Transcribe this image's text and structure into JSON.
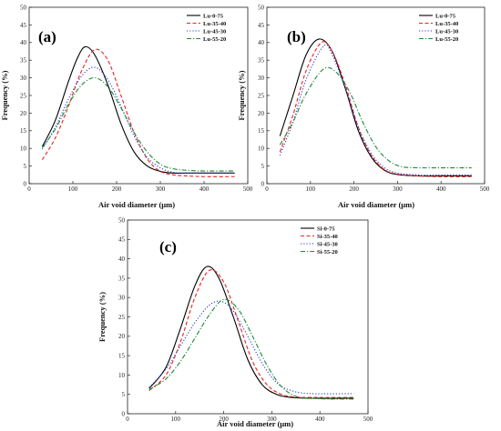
{
  "chart_data": [
    {
      "type": "line",
      "panel_label": "(a)",
      "xlabel": "Air void diameter (μm)",
      "ylabel": "Frequency (%)",
      "xlim": [
        0,
        500
      ],
      "ylim": [
        0,
        50
      ],
      "xticks": [
        "0",
        "100",
        "200",
        "300",
        "400",
        "500"
      ],
      "yticks": [
        "0",
        "5",
        "10",
        "15",
        "20",
        "25",
        "30",
        "35",
        "40",
        "45",
        "50"
      ],
      "legend_position": "top-right",
      "series": [
        {
          "name": "Lu-0-75",
          "color": "#000000",
          "dash": "solid",
          "x": [
            30,
            60,
            90,
            110,
            128,
            150,
            180,
            210,
            240,
            270,
            300,
            330,
            360,
            400,
            470
          ],
          "y": [
            10.5,
            18,
            29,
            35.5,
            38.8,
            36.5,
            28,
            17,
            9,
            5,
            3.5,
            3.0,
            3.0,
            3.0,
            3.0
          ]
        },
        {
          "name": "Lu-35-40",
          "color": "#e8231e",
          "dash": "dashed",
          "x": [
            30,
            60,
            90,
            120,
            150,
            180,
            210,
            240,
            270,
            300,
            330,
            360,
            400,
            470
          ],
          "y": [
            6.8,
            13,
            22,
            32,
            38,
            35,
            25,
            14.5,
            7,
            3.5,
            2.5,
            2.2,
            2.0,
            2.0
          ]
        },
        {
          "name": "Lu-45-30",
          "color": "#2f3bd0",
          "dash": "dotted",
          "x": [
            30,
            60,
            90,
            120,
            150,
            180,
            210,
            240,
            270,
            300,
            330,
            360,
            400,
            470
          ],
          "y": [
            9.8,
            16,
            24,
            30.5,
            33,
            29.5,
            22,
            13.5,
            7.5,
            4.5,
            3.2,
            3.0,
            3.0,
            3.0
          ]
        },
        {
          "name": "Lu-55-20",
          "color": "#1b8a3a",
          "dash": "dashdot",
          "x": [
            30,
            60,
            90,
            120,
            150,
            180,
            210,
            240,
            270,
            300,
            330,
            360,
            400,
            470
          ],
          "y": [
            10.2,
            15.5,
            22.5,
            28,
            30,
            27.5,
            21.5,
            14.5,
            9,
            5.5,
            4.2,
            3.8,
            3.6,
            3.6
          ]
        }
      ]
    },
    {
      "type": "line",
      "panel_label": "(b)",
      "xlabel": "Air void diameter (μm)",
      "ylabel": "Frequency (%)",
      "xlim": [
        0,
        500
      ],
      "ylim": [
        0,
        50
      ],
      "xticks": [
        "0",
        "100",
        "200",
        "300",
        "400",
        "500"
      ],
      "yticks": [
        "0",
        "5",
        "10",
        "15",
        "20",
        "25",
        "30",
        "35",
        "40",
        "45",
        "50"
      ],
      "legend_position": "top-right",
      "series": [
        {
          "name": "Lu-0-75",
          "color": "#000000",
          "dash": "solid",
          "x": [
            30,
            60,
            90,
            120,
            150,
            180,
            210,
            240,
            270,
            300,
            350,
            400,
            470
          ],
          "y": [
            13.5,
            25,
            36.5,
            41,
            37.5,
            27,
            15,
            7.5,
            3.8,
            2.6,
            2.2,
            2.2,
            2.2
          ]
        },
        {
          "name": "Lu-35-40",
          "color": "#e8231e",
          "dash": "dashed",
          "x": [
            30,
            60,
            90,
            125,
            150,
            180,
            210,
            240,
            270,
            300,
            350,
            400,
            470
          ],
          "y": [
            9,
            19.5,
            32,
            40,
            37.5,
            28,
            16,
            8,
            4,
            2.7,
            2.2,
            2.0,
            2.0
          ]
        },
        {
          "name": "Lu-45-30",
          "color": "#2f3bd0",
          "dash": "dotted",
          "x": [
            30,
            60,
            90,
            130,
            150,
            180,
            210,
            240,
            270,
            300,
            350,
            400,
            470
          ],
          "y": [
            8,
            17.5,
            29.5,
            39,
            36.5,
            27,
            16,
            8.5,
            4.5,
            3.0,
            2.5,
            2.5,
            2.5
          ]
        },
        {
          "name": "Lu-55-20",
          "color": "#1b8a3a",
          "dash": "dashdot",
          "x": [
            30,
            60,
            90,
            130,
            160,
            190,
            220,
            250,
            280,
            310,
            350,
            400,
            470
          ],
          "y": [
            11,
            17.5,
            25.5,
            32.5,
            31.5,
            26,
            17.5,
            10.5,
            6.5,
            4.8,
            4.5,
            4.5,
            4.5
          ]
        }
      ]
    },
    {
      "type": "line",
      "panel_label": "(c)",
      "xlabel": "Air void diameter (μm)",
      "ylabel": "Frequency (%)",
      "xlim": [
        0,
        500
      ],
      "ylim": [
        0,
        50
      ],
      "xticks": [
        "0",
        "100",
        "200",
        "300",
        "400",
        "500"
      ],
      "yticks": [
        "0",
        "5",
        "10",
        "15",
        "20",
        "25",
        "30",
        "35",
        "40",
        "45",
        "50"
      ],
      "legend_position": "top-right",
      "series": [
        {
          "name": "Si-0-75",
          "color": "#000000",
          "dash": "solid",
          "x": [
            45,
            80,
            110,
            140,
            165,
            190,
            220,
            250,
            280,
            310,
            340,
            380,
            470
          ],
          "y": [
            6.5,
            12,
            22,
            33,
            38,
            35,
            25,
            14,
            7.5,
            5,
            4.2,
            4.0,
            4.0
          ]
        },
        {
          "name": "Si-35-40",
          "color": "#e8231e",
          "dash": "dashed",
          "x": [
            45,
            80,
            110,
            140,
            170,
            200,
            230,
            260,
            290,
            320,
            350,
            390,
            470
          ],
          "y": [
            6.0,
            10,
            18.5,
            30,
            37,
            34,
            24,
            13.5,
            7.5,
            5,
            4.3,
            4.2,
            4.2
          ]
        },
        {
          "name": "Si-45-30",
          "color": "#2f3bd0",
          "dash": "dotted",
          "x": [
            45,
            80,
            110,
            140,
            170,
            195,
            220,
            250,
            280,
            310,
            340,
            380,
            470
          ],
          "y": [
            6.8,
            11.5,
            17.5,
            23.5,
            28,
            29,
            26.5,
            20,
            13,
            8,
            6,
            5.2,
            5.2
          ]
        },
        {
          "name": "Si-55-20",
          "color": "#1b8a3a",
          "dash": "dashdot",
          "x": [
            45,
            80,
            110,
            140,
            170,
            200,
            230,
            260,
            290,
            320,
            350,
            380,
            420,
            470
          ],
          "y": [
            6.2,
            9,
            13.5,
            19.5,
            25.5,
            29.5,
            27,
            20,
            12.5,
            7,
            4.5,
            4.0,
            3.8,
            3.8
          ]
        }
      ]
    }
  ]
}
